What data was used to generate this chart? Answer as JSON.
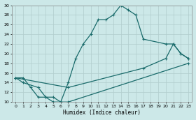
{
  "xlabel": "Humidex (Indice chaleur)",
  "xlim": [
    -0.5,
    23.5
  ],
  "ylim": [
    10,
    30
  ],
  "xticks": [
    0,
    1,
    2,
    3,
    4,
    5,
    6,
    7,
    8,
    9,
    10,
    11,
    12,
    13,
    14,
    15,
    16,
    17,
    18,
    19,
    20,
    21,
    22,
    23
  ],
  "yticks": [
    10,
    12,
    14,
    16,
    18,
    20,
    22,
    24,
    26,
    28,
    30
  ],
  "bg_color": "#cce8e8",
  "line_color": "#1a6b6b",
  "grid_color": "#b0cccc",
  "line1_x": [
    0,
    1,
    2,
    3,
    4,
    5,
    6,
    7,
    8,
    9,
    10,
    11,
    12,
    13,
    14,
    15,
    16,
    17,
    20,
    21,
    22,
    23
  ],
  "line1_y": [
    15,
    15,
    13,
    11,
    11,
    10,
    10,
    14,
    19,
    22,
    24,
    27,
    27,
    28,
    30,
    29,
    28,
    23,
    22,
    22,
    20,
    19
  ],
  "line2_x": [
    0,
    1,
    3,
    4,
    5,
    6,
    7,
    23
  ],
  "line2_y": [
    15,
    14,
    13,
    11,
    11,
    10,
    10,
    18
  ],
  "line3_x": [
    0,
    7,
    17,
    20,
    21,
    22,
    23
  ],
  "line3_y": [
    15,
    13,
    17,
    19,
    22,
    20,
    19
  ]
}
